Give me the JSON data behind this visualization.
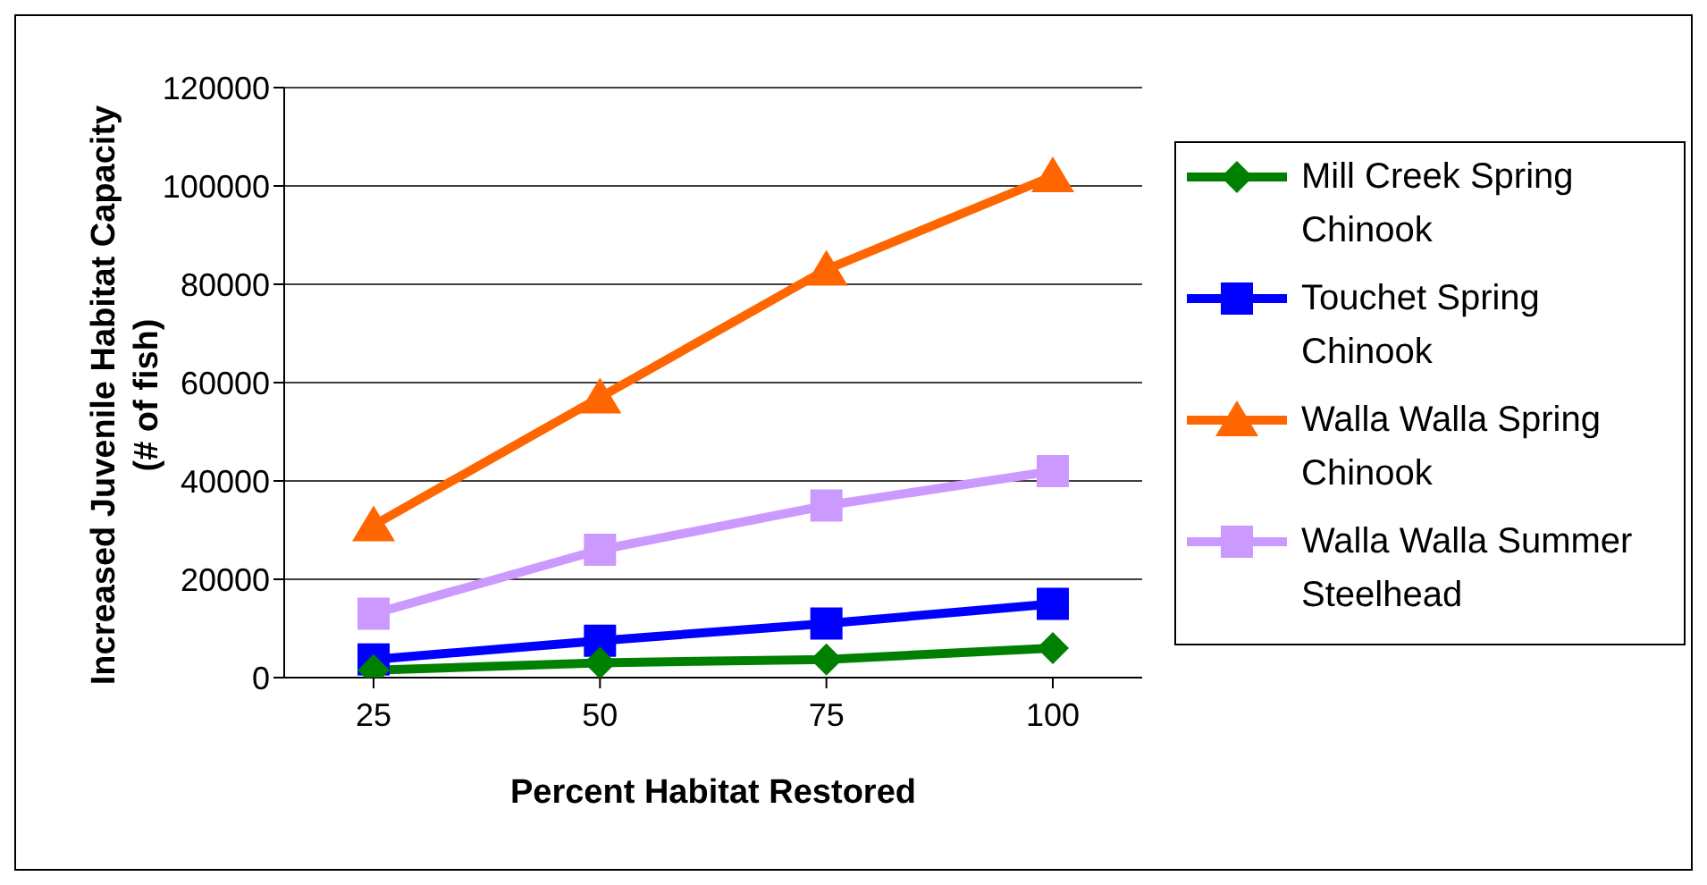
{
  "chart_data": {
    "type": "line",
    "xlabel": "Percent Habitat Restored",
    "ylabel": "Increased Juvenile Habitat Capacity (# of fish)",
    "categories": [
      "25",
      "50",
      "75",
      "100"
    ],
    "series": [
      {
        "name": "Mill Creek Spring Chinook",
        "color": "#008000",
        "marker": "diamond",
        "values": [
          1500,
          3000,
          3700,
          6000
        ]
      },
      {
        "name": "Touchet Spring Chinook",
        "color": "#0000ff",
        "marker": "square",
        "values": [
          3700,
          7500,
          11000,
          15000
        ]
      },
      {
        "name": "Walla Walla Spring Chinook",
        "color": "#ff6600",
        "marker": "triangle",
        "values": [
          31000,
          57000,
          83000,
          102000
        ]
      },
      {
        "name": "Walla Walla Summer Steelhead",
        "color": "#cc99ff",
        "marker": "square",
        "values": [
          13000,
          26000,
          35000,
          42000
        ]
      }
    ],
    "ylim": [
      0,
      120000
    ],
    "yticks": [
      0,
      20000,
      40000,
      60000,
      80000,
      100000,
      120000
    ],
    "grid": "y",
    "legend": "right"
  }
}
